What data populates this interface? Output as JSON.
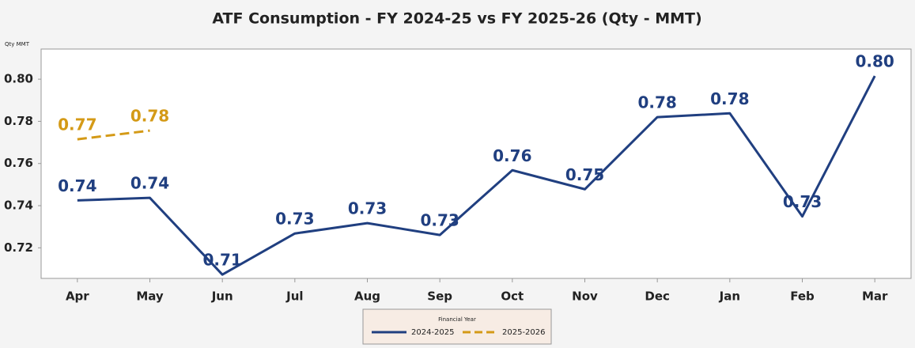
{
  "chart_data": {
    "type": "line",
    "title": "ATF Consumption - FY 2024-25 vs FY 2025-26 (Qty - MMT)",
    "y_label": "Qty MMT",
    "legend_title": "Financial Year",
    "legend": "bottom",
    "categories": [
      "Apr",
      "May",
      "Jun",
      "Jul",
      "Aug",
      "Sep",
      "Oct",
      "Nov",
      "Dec",
      "Jan",
      "Feb",
      "Mar"
    ],
    "series": [
      {
        "name": "2024-2025",
        "color": "#203f80",
        "dashed": false,
        "values": [
          0.7425,
          0.7437,
          0.7073,
          0.7268,
          0.7317,
          0.7261,
          0.7568,
          0.7478,
          0.782,
          0.7838,
          0.7349,
          0.8015
        ],
        "value_labels": [
          "0.74",
          "0.74",
          "0.71",
          "0.73",
          "0.73",
          "0.73",
          "0.76",
          "0.75",
          "0.78",
          "0.78",
          "0.73",
          "0.80"
        ]
      },
      {
        "name": "2025-2026",
        "color": "#d49a17",
        "dashed": true,
        "values": [
          0.7715,
          0.7756,
          null,
          null,
          null,
          null,
          null,
          null,
          null,
          null,
          null,
          null
        ],
        "value_labels": [
          "0.77",
          "0.78",
          null,
          null,
          null,
          null,
          null,
          null,
          null,
          null,
          null,
          null
        ]
      }
    ],
    "ylim": [
      0.7055,
      0.8143
    ],
    "yticks": [
      0.72,
      0.74,
      0.76,
      0.78,
      {
        "value": 0.8,
        "label": "0.80"
      }
    ],
    "grid": false
  }
}
